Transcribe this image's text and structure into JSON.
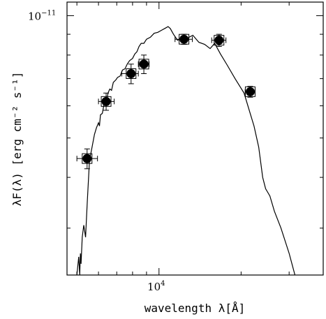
{
  "chart_data": {
    "type": "scatter",
    "xlabel": "wavelength λ[Å]",
    "ylabel": "λF(λ) [erg cm⁻² s⁻¹]",
    "x_scale": "log",
    "y_scale": "log",
    "xlim": [
      4600,
      40000
    ],
    "ylim": [
      2.3e-12,
      1.08e-11
    ],
    "x_tick_labels": [
      {
        "value": 10000,
        "base": "10",
        "exp": "4"
      }
    ],
    "y_tick_labels": [
      {
        "value": 1e-11,
        "base": "10",
        "exp": "−11"
      }
    ],
    "grid": false,
    "series": [
      {
        "mode": "markers-with-errorbars",
        "points": [
          {
            "x": 5450,
            "y": 4.45e-12,
            "xerr_lo": 450,
            "xerr_hi": 500,
            "yerr": 2.5e-13
          },
          {
            "x": 6400,
            "y": 6.15e-12,
            "xerr_lo": 400,
            "xerr_hi": 450,
            "yerr": 3e-13
          },
          {
            "x": 7900,
            "y": 7.2e-12,
            "xerr_lo": 600,
            "xerr_hi": 500,
            "yerr": 4e-13
          },
          {
            "x": 8800,
            "y": 7.6e-12,
            "xerr_lo": 400,
            "xerr_hi": 400,
            "yerr": 4e-13
          },
          {
            "x": 12350,
            "y": 8.75e-12,
            "xerr_lo": 900,
            "xerr_hi": 900,
            "yerr": 2.5e-13
          },
          {
            "x": 16600,
            "y": 8.7e-12,
            "xerr_lo": 1000,
            "xerr_hi": 1000,
            "yerr": 3e-13
          },
          {
            "x": 21600,
            "y": 6.5e-12,
            "xerr_lo": 900,
            "xerr_hi": 900,
            "yerr": 2e-13
          }
        ]
      },
      {
        "mode": "line",
        "x": [
          5000,
          5080,
          5120,
          5150,
          5180,
          5230,
          5300,
          5380,
          5420,
          5460,
          5560,
          5700,
          5800,
          5900,
          6000,
          6050,
          6100,
          6200,
          6300,
          6400,
          6500,
          6600,
          6700,
          6800,
          6950,
          7050,
          7200,
          7350,
          7500,
          7650,
          7800,
          8000,
          8150,
          8300,
          8450,
          8600,
          8800,
          9000,
          9300,
          9600,
          9900,
          10200,
          10500,
          10800,
          11000,
          11300,
          11700,
          12200,
          12700,
          13300,
          14000,
          14700,
          15400,
          16000,
          16800,
          17800,
          19000,
          20500,
          21500,
          22300,
          23200,
          24000,
          24600,
          25500,
          26500,
          28000,
          30000,
          31500
        ],
        "y": [
          2.3e-12,
          2.55e-12,
          2.3e-12,
          2.6e-12,
          2.45e-12,
          2.85e-12,
          3.05e-12,
          2.85e-12,
          3.15e-12,
          3.5e-12,
          4.4e-12,
          4.8e-12,
          5.1e-12,
          5.3e-12,
          5.45e-12,
          5.35e-12,
          5.7e-12,
          5.75e-12,
          6.1e-12,
          6.05e-12,
          6.45e-12,
          6.6e-12,
          6.55e-12,
          6.85e-12,
          6.95e-12,
          7.05e-12,
          7.1e-12,
          7.35e-12,
          7.4e-12,
          7.6e-12,
          7.75e-12,
          7.85e-12,
          8.05e-12,
          8.15e-12,
          8.4e-12,
          8.55e-12,
          8.55e-12,
          8.75e-12,
          8.85e-12,
          9.05e-12,
          9.1e-12,
          9.2e-12,
          9.3e-12,
          9.4e-12,
          9.3e-12,
          9e-12,
          8.7e-12,
          8.85e-12,
          8.8e-12,
          8.95e-12,
          8.6e-12,
          8.5e-12,
          8.3e-12,
          8.55e-12,
          8.05e-12,
          7.55e-12,
          7e-12,
          6.45e-12,
          5.8e-12,
          5.35e-12,
          4.75e-12,
          4e-12,
          3.75e-12,
          3.6e-12,
          3.3e-12,
          3e-12,
          2.6e-12,
          2.3e-12
        ]
      }
    ]
  }
}
